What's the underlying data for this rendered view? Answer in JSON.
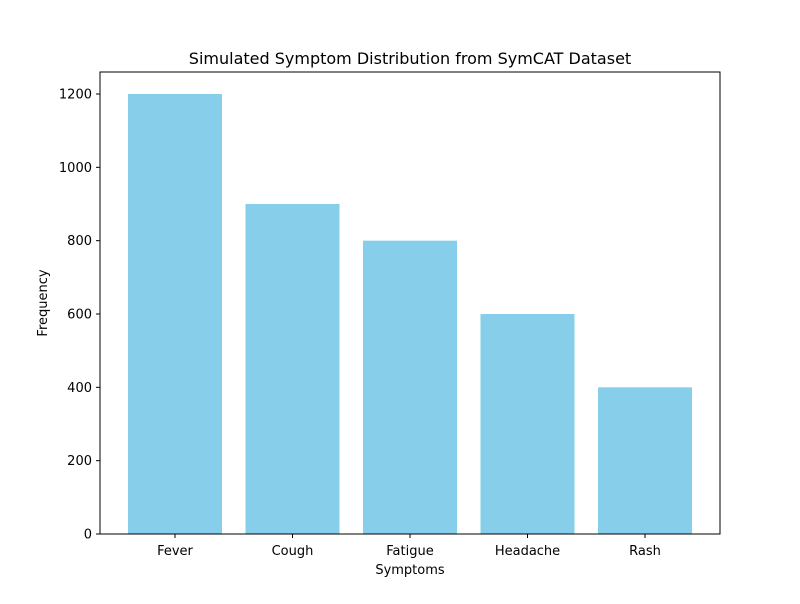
{
  "chart_data": {
    "type": "bar",
    "title": "Simulated Symptom Distribution from SymCAT Dataset",
    "xlabel": "Symptoms",
    "ylabel": "Frequency",
    "categories": [
      "Fever",
      "Cough",
      "Fatigue",
      "Headache",
      "Rash"
    ],
    "values": [
      1200,
      900,
      800,
      600,
      400
    ],
    "ylim": [
      0,
      1260
    ],
    "yticks": [
      0,
      200,
      400,
      600,
      800,
      1000,
      1200
    ],
    "bar_color": "#87ceeb",
    "grid": false,
    "legend": "none"
  }
}
